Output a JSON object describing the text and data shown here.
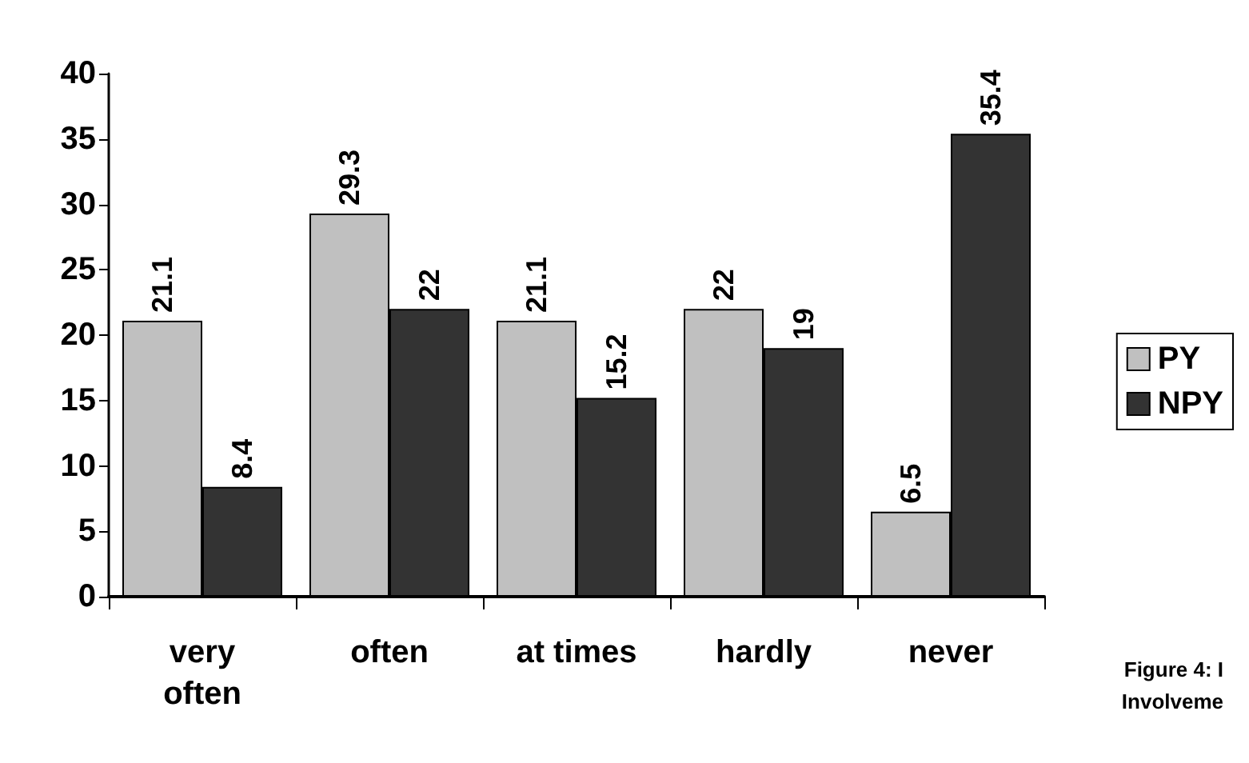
{
  "chart_data": {
    "type": "bar",
    "categories": [
      "very\noften",
      "often",
      "at times",
      "hardly",
      "never"
    ],
    "series": [
      {
        "name": "PY",
        "color": "#c0c0c0",
        "values": [
          21.1,
          29.3,
          21.1,
          22,
          6.5
        ]
      },
      {
        "name": "NPY",
        "color": "#333333",
        "values": [
          8.4,
          22,
          15.2,
          19,
          35.4
        ]
      }
    ],
    "ylim": [
      0,
      40
    ],
    "yticks": [
      0,
      5,
      10,
      15,
      20,
      25,
      30,
      35,
      40
    ],
    "grid": false,
    "legend": "right",
    "data_labels": true,
    "annotations": [
      "Figure 4: I",
      "Involveme"
    ]
  }
}
